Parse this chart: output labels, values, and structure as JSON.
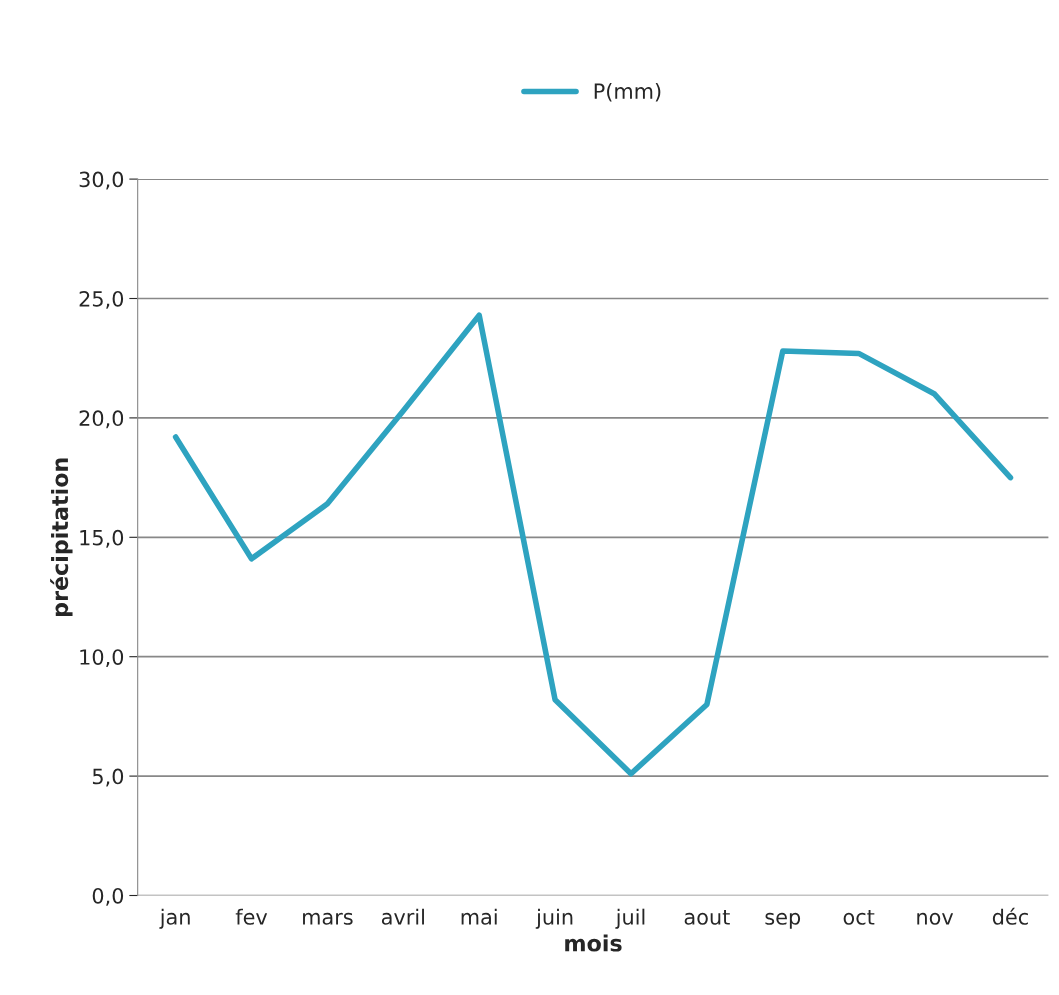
{
  "chart_data": {
    "type": "line",
    "xlabel": "mois",
    "ylabel": "précipitation",
    "categories": [
      "jan",
      "fev",
      "mars",
      "avril",
      "mai",
      "juin",
      "juil",
      "aout",
      "sep",
      "oct",
      "nov",
      "déc"
    ],
    "series": [
      {
        "name": "P(mm)",
        "color": "#2ea3c0",
        "values": [
          19.2,
          14.1,
          16.4,
          20.3,
          24.3,
          8.2,
          5.1,
          8.0,
          22.8,
          22.7,
          21.0,
          17.5
        ]
      }
    ],
    "ylim": [
      0,
      30
    ],
    "yticks": [
      {
        "value": 0,
        "label": "0,0"
      },
      {
        "value": 5,
        "label": "5,0"
      },
      {
        "value": 10,
        "label": "10,0"
      },
      {
        "value": 15,
        "label": "15,0"
      },
      {
        "value": 20,
        "label": "20,0"
      },
      {
        "value": 25,
        "label": "25,0"
      },
      {
        "value": 30,
        "label": "30,0"
      }
    ],
    "grid": "y",
    "legend": "top",
    "marker": "none",
    "line_style": "solid"
  }
}
